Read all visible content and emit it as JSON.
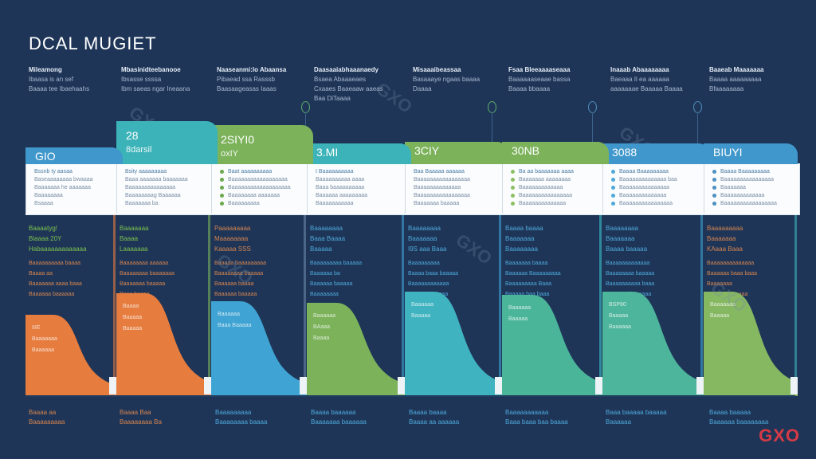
{
  "title": "DCAL MUGIET",
  "brand": "GXO",
  "watermark": "GXO",
  "colors": {
    "background": "#1e3558",
    "orange": "#e67c3e",
    "blue": "#3fa3d3",
    "teal": "#3bb3b8",
    "green": "#7bb25a",
    "brand_red": "#d43a45"
  },
  "top_notes": [
    {
      "heading": "Mileamong",
      "lines": [
        "Ibaasa is an sef",
        "Baaaa tee Ibaehaahs"
      ]
    },
    {
      "heading": "Mbasinidteebanooe",
      "lines": [
        "Ibsasse ssssa",
        "Ibm saeas ngar Ineaana"
      ]
    },
    {
      "heading": "Naaseanmi:lo Abaansa",
      "lines": [
        "Pibaead ssa Rasssb",
        "Baasaageasas Iaaas"
      ]
    },
    {
      "heading": "Daasaaiabhaaanaedy",
      "lines": [
        "Bsaea Abaaaeaes",
        "Cxaaes Baaeaaw aaeas",
        "Baa DiTaaaa"
      ]
    },
    {
      "heading": "Misaaaibeassaa",
      "lines": [
        "Basaaaye ngaas baaaa",
        "Daaaa"
      ]
    },
    {
      "heading": "Fsaa Bleeaaaaseaaa",
      "lines": [
        "Baaaaaaseaae bassa",
        "Baaaa bbaaaa"
      ]
    },
    {
      "heading": "Inaaab Abaaaaaaaa",
      "lines": [
        "Baeaaa Il ea aaaaaa",
        "aaaaaaae Baaaaa Baaaa"
      ]
    },
    {
      "heading": "Baaeab Maaaaaaa",
      "lines": [
        "Baaaa aaaaaaaaa",
        "Bfaaaaaaaa"
      ]
    }
  ],
  "columns": [
    {
      "header": "GIO",
      "sub": "",
      "header_color": "#3f97cc",
      "bullet_color": "",
      "card_lines": [
        "Bssnb ty aasaa",
        "Baseaaaaaaaa bwaaaa",
        "Baaaaaaa he aaaaaaa",
        "Baaaaaaaa",
        "Bsaaaa"
      ],
      "text_title_color": "#7bc24b",
      "text_titles": [
        "Baaaatyg!",
        "Biaaaa 20Y",
        "Habaaaaaaaaaaaaa"
      ],
      "text_body_color": "#d5844e",
      "text_body": [
        "Baaaaaaaaaa baaaa",
        "Baaaa aa",
        "Baaaaaaa aaaa baaa",
        "Baaaaaa baaaaaa"
      ],
      "wave_color": "#e67c3e",
      "wave_text": [
        "IIIE",
        "Baaaaaaa",
        "Baaaaaa"
      ],
      "bottom_color": "#d5844e",
      "bottom": [
        "Baaaa aa",
        "Baaaaaaaaa"
      ]
    },
    {
      "header": "28",
      "sub": "8darsil",
      "header_color": "#3bb3b8",
      "bullet_color": "",
      "card_lines": [
        "Bsity aaaaaaaaa",
        "Baaa aaaaaaa baaaaaaa",
        "Baaaaaaaaaaaaaaa",
        "Baaaaaaaag Baaaaaa",
        "Baaaaaaa ba"
      ],
      "text_title_color": "#7bc24b",
      "text_titles": [
        "Baaaaaaa",
        "Baaaa",
        "Laaaaaaa"
      ],
      "text_body_color": "#d5844e",
      "text_body": [
        "Baaaaaaaa aaaaaa",
        "Baaaaaaaa baaaaaaa",
        "Baaaaaaa baaaaa",
        "Baaa baaaa"
      ],
      "wave_color": "#e67c3e",
      "wave_text": [
        "Baaaa",
        "Baaaaa",
        "Baaaaa"
      ],
      "bottom_color": "#d5844e",
      "bottom": [
        "Baaaa Baa",
        "Baaaaaaaa Ba"
      ]
    },
    {
      "header": "2SIYI0",
      "sub": "oxIY",
      "header_color": "#7bb25a",
      "bullet_color": "#6aa84f",
      "card_lines": [
        "Baat aaaaaaaaaa",
        "Baaaaaaaaaaaaaaaaaa",
        "Baaaaaaaaaaaaaaaaaaa",
        "Baaaaaaaa aaaaaaa",
        "Baaaaaaaaa"
      ],
      "text_title_color": "#d5844e",
      "text_titles": [
        "Paaaaaaaaa",
        "Maaaaaaaa",
        "Kaaaaa SSS"
      ],
      "text_body_color": "#d5844e",
      "text_body": [
        "Baaaaa baaaaaaaaa",
        "Baaaaaaaa baaaaa",
        "Baaaaaa baaaa",
        "Baaaaaa baaaaa"
      ],
      "wave_color": "#3fa3d3",
      "wave_text": [
        "Baaaaaa",
        "Baaa Baaaaa"
      ],
      "bottom_color": "#4ea8d8",
      "bottom": [
        "Baaaaaaaaa",
        "Baaaaaaaa baaaa"
      ]
    },
    {
      "header": "3.MI",
      "sub": "",
      "header_color": "#3bb3b8",
      "bullet_color": "",
      "card_lines": [
        "I Baaaaaaaaaa",
        "Baaaaaaaaaa aaaa",
        "Baaa baaaaaaaaaa",
        "Baaaaaa aaaaaaaaa",
        "Baaaaaaaaaaa"
      ],
      "text_title_color": "#4ea8d8",
      "text_titles": [
        "Baaaaaaaa",
        "Baaa Baaaa",
        "Baaaaa"
      ],
      "text_body_color": "#4ea8d8",
      "text_body": [
        "Baaaaaaaaa baaaaa",
        "Baaaaaa ba",
        "Baaaaaa baaaaa",
        "Baaaaaaaa"
      ],
      "wave_color": "#7bb25a",
      "wave_text": [
        "Baaaaaa",
        "BAaaa",
        "Baaaa"
      ],
      "bottom_color": "#4ea8d8",
      "bottom": [
        "Baaaa baaaaaa",
        "Baaaaaaa baaaaaa"
      ]
    },
    {
      "header": "3CIY",
      "sub": "",
      "header_color": "#7bb25a",
      "bullet_color": "",
      "card_lines": [
        "Baa Baaaaa aaaaaa",
        "Baaaaaaaaaaaaaaaaa",
        "Baaaaaaaaaaaaaa",
        "Baaaaaaaaaaaaaaaaa",
        "Baaaaaaa baaaaa"
      ],
      "text_title_color": "#4ea8d8",
      "text_titles": [
        "Baaaaaaaa",
        "Baaaaaaa",
        "I9S aaa Baaa"
      ],
      "text_body_color": "#4ea8d8",
      "text_body": [
        "Baaaaaaaaa",
        "Baaaa baaa baaaaa",
        "Baaaaaaaaaaaa",
        "Baaaaaa Baaaa"
      ],
      "wave_color": "#3fb3c0",
      "wave_text": [
        "Baaaaaa",
        "Baaaaa"
      ],
      "bottom_color": "#4ea8d8",
      "bottom": [
        "Baaaa baaaa",
        "Baaaa aa aaaaaa"
      ]
    },
    {
      "header": "30NB",
      "sub": "",
      "header_color": "#7bb25a",
      "bullet_color": "#8cc063",
      "card_lines": [
        "Ba aa baaaaaaa aaaa",
        "Baaaaaaa aaaaaaaa",
        "Baaaaaaaaaaaaa",
        "Baaaaaaaaaaaaaaaa",
        "Baaaaaaaaaaaaaa"
      ],
      "text_title_color": "#4ea8d8",
      "text_titles": [
        "Baaaa baaaa",
        "Baaaaaaa",
        "Baaaaaaaa"
      ],
      "text_body_color": "#4ea8d8",
      "text_body": [
        "Baaaaaaa baaaa",
        "Baaaaaa Baaaaaaaaa",
        "Baaaaaaaaa Baaa",
        "Baaaaa baa baaa"
      ],
      "wave_color": "#4bb59a",
      "wave_text": [
        "Baaaaaa",
        "Baaaaa"
      ],
      "bottom_color": "#4ea8d8",
      "bottom": [
        "Baaaaaaaaaaa",
        "Baaa baaa baa baaaa"
      ]
    },
    {
      "header": "3088",
      "sub": "",
      "header_color": "#3f97cc",
      "bullet_color": "#4ea8d8",
      "card_lines": [
        "Baaaa Baaaaaaaaa",
        "Baaaaaaaaaaaaaa baa",
        "Baaaaaaaaaaaaaaa",
        "Baaaaaaaaaaaaaa",
        "Baaaaaaaaaaaaaaaa"
      ],
      "text_title_color": "#4ea8d8",
      "text_titles": [
        "Baaaaaaaa",
        "Baaaaaaa",
        "Baaaa baaaaa"
      ],
      "text_body_color": "#4ea8d8",
      "text_body": [
        "Baaaaaaaaaaaaa",
        "Baaaaaaaa baaaaa",
        "Baaaaaaaaaa baaa",
        "Baaaaaa baaaaaa"
      ],
      "wave_color": "#4db59b",
      "wave_text": [
        "BSP80",
        "Baaaaa",
        "Baaaaaa"
      ],
      "bottom_color": "#4ea8d8",
      "bottom": [
        "Baaa baaaaa baaaaa",
        "Baaaaaa"
      ]
    },
    {
      "header": "BIUYI",
      "sub": "",
      "header_color": "#3f97cc",
      "bullet_color": "#4e90c0",
      "card_lines": [
        "Baaaa Baaaaaaaaa",
        "Baaaaaaaaaaaaaaaa",
        "Baaaaaaa",
        "Baaaaaaaaaaaaa",
        "Baaaaaaaaaaaaaaaaa"
      ],
      "text_title_color": "#d5844e",
      "text_titles": [
        "Baaaaaaaaa",
        "Baaaaaaa",
        "KAaaa Baaa"
      ],
      "text_body_color": "#d5844e",
      "text_body": [
        "Baaaaaaaaaaaaaa",
        "Baaaaaa baaa baaa",
        "Baaaaaaa",
        "Baaaaaaaaaaaa"
      ],
      "wave_color": "#86b862",
      "wave_text": [
        "Baaaaaaa",
        "Baaaaa"
      ],
      "bottom_color": "#4ea8d8",
      "bottom": [
        "Baaaa baaaaa",
        "Baaaaaa baaaaaaaa"
      ]
    }
  ]
}
